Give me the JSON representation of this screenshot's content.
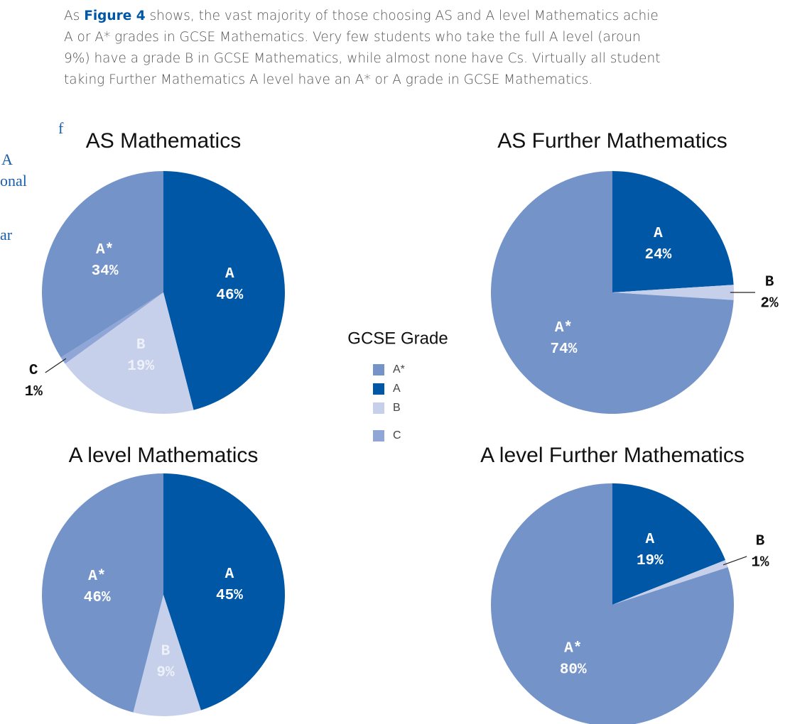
{
  "paragraph": [
    [
      "As ",
      "Figure 4",
      " shows, the vast majority of those choosing AS and A level Mathematics achie"
    ],
    [
      "A or A* grades in GCSE Mathematics. Very few students who take the full A level (aroun"
    ],
    [
      "9%) have a grade B in GCSE Mathematics, while almost none have Cs. Virtually all student"
    ],
    [
      "taking Further Mathematics A level have an A* or A grade in GCSE Mathematics."
    ]
  ],
  "sidebar": [
    "f",
    "A",
    "onal",
    "ar"
  ],
  "legend_title": "GCSE Grade",
  "chart_data": [
    {
      "type": "pie",
      "title": "AS Mathematics",
      "categories": [
        "A*",
        "A",
        "B",
        "C"
      ],
      "values": [
        34,
        46,
        19,
        1
      ],
      "value_labels": [
        "34%",
        "46%",
        "19%",
        "1%"
      ],
      "colors": [
        "#7393c9",
        "#0057a6",
        "#c6d0ea",
        "#8fa6d6"
      ]
    },
    {
      "type": "pie",
      "title": "AS Further Mathematics",
      "categories": [
        "A*",
        "A",
        "B",
        "C"
      ],
      "values": [
        74,
        24,
        2,
        null
      ],
      "value_labels": [
        "74%",
        "24%",
        "2%",
        null
      ],
      "colors": [
        "#7393c9",
        "#0057a6",
        "#c6d0ea",
        "#8fa6d6"
      ]
    },
    {
      "type": "pie",
      "title": "A level Mathematics",
      "categories": [
        "A*",
        "A",
        "B",
        "C"
      ],
      "values": [
        46,
        45,
        9,
        null
      ],
      "value_labels": [
        "46%",
        "45%",
        "9%",
        null
      ],
      "colors": [
        "#7393c9",
        "#0057a6",
        "#c6d0ea",
        "#8fa6d6"
      ]
    },
    {
      "type": "pie",
      "title": "A level Further Mathematics",
      "categories": [
        "A*",
        "A",
        "B",
        "C"
      ],
      "values": [
        80,
        19,
        1,
        null
      ],
      "value_labels": [
        "80%",
        "19%",
        "1%",
        null
      ],
      "colors": [
        "#7393c9",
        "#0057a6",
        "#c6d0ea",
        "#8fa6d6"
      ]
    }
  ]
}
